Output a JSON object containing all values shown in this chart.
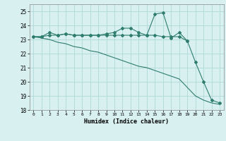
{
  "xlabel": "Humidex (Indice chaleur)",
  "x": [
    0,
    1,
    2,
    3,
    4,
    5,
    6,
    7,
    8,
    9,
    10,
    11,
    12,
    13,
    14,
    15,
    16,
    17,
    18,
    19,
    20,
    21,
    22,
    23
  ],
  "series1": [
    23.2,
    23.2,
    23.5,
    23.3,
    23.4,
    23.3,
    23.3,
    23.3,
    23.3,
    23.4,
    23.5,
    23.8,
    23.8,
    23.5,
    23.3,
    24.8,
    24.9,
    23.1,
    23.5,
    22.9,
    null,
    null,
    null,
    null
  ],
  "series2": [
    23.2,
    23.2,
    23.3,
    23.3,
    23.4,
    23.3,
    23.3,
    23.3,
    23.3,
    23.3,
    23.3,
    23.3,
    23.3,
    23.3,
    23.3,
    23.3,
    23.2,
    23.2,
    23.2,
    22.9,
    21.4,
    20.0,
    18.7,
    18.5
  ],
  "series3": [
    23.2,
    23.1,
    23.0,
    22.8,
    22.7,
    22.5,
    22.4,
    22.2,
    22.1,
    21.9,
    21.7,
    21.5,
    21.3,
    21.1,
    21.0,
    20.8,
    20.6,
    20.4,
    20.2,
    19.6,
    19.0,
    18.7,
    18.5,
    18.4
  ],
  "color": "#2e7d6e",
  "bg_color": "#d8f0f0",
  "ylim": [
    18,
    25.5
  ],
  "yticks": [
    18,
    19,
    20,
    21,
    22,
    23,
    24,
    25
  ],
  "grid_color": "#b0d8d8",
  "linewidth": 0.8,
  "markersize": 2.0
}
